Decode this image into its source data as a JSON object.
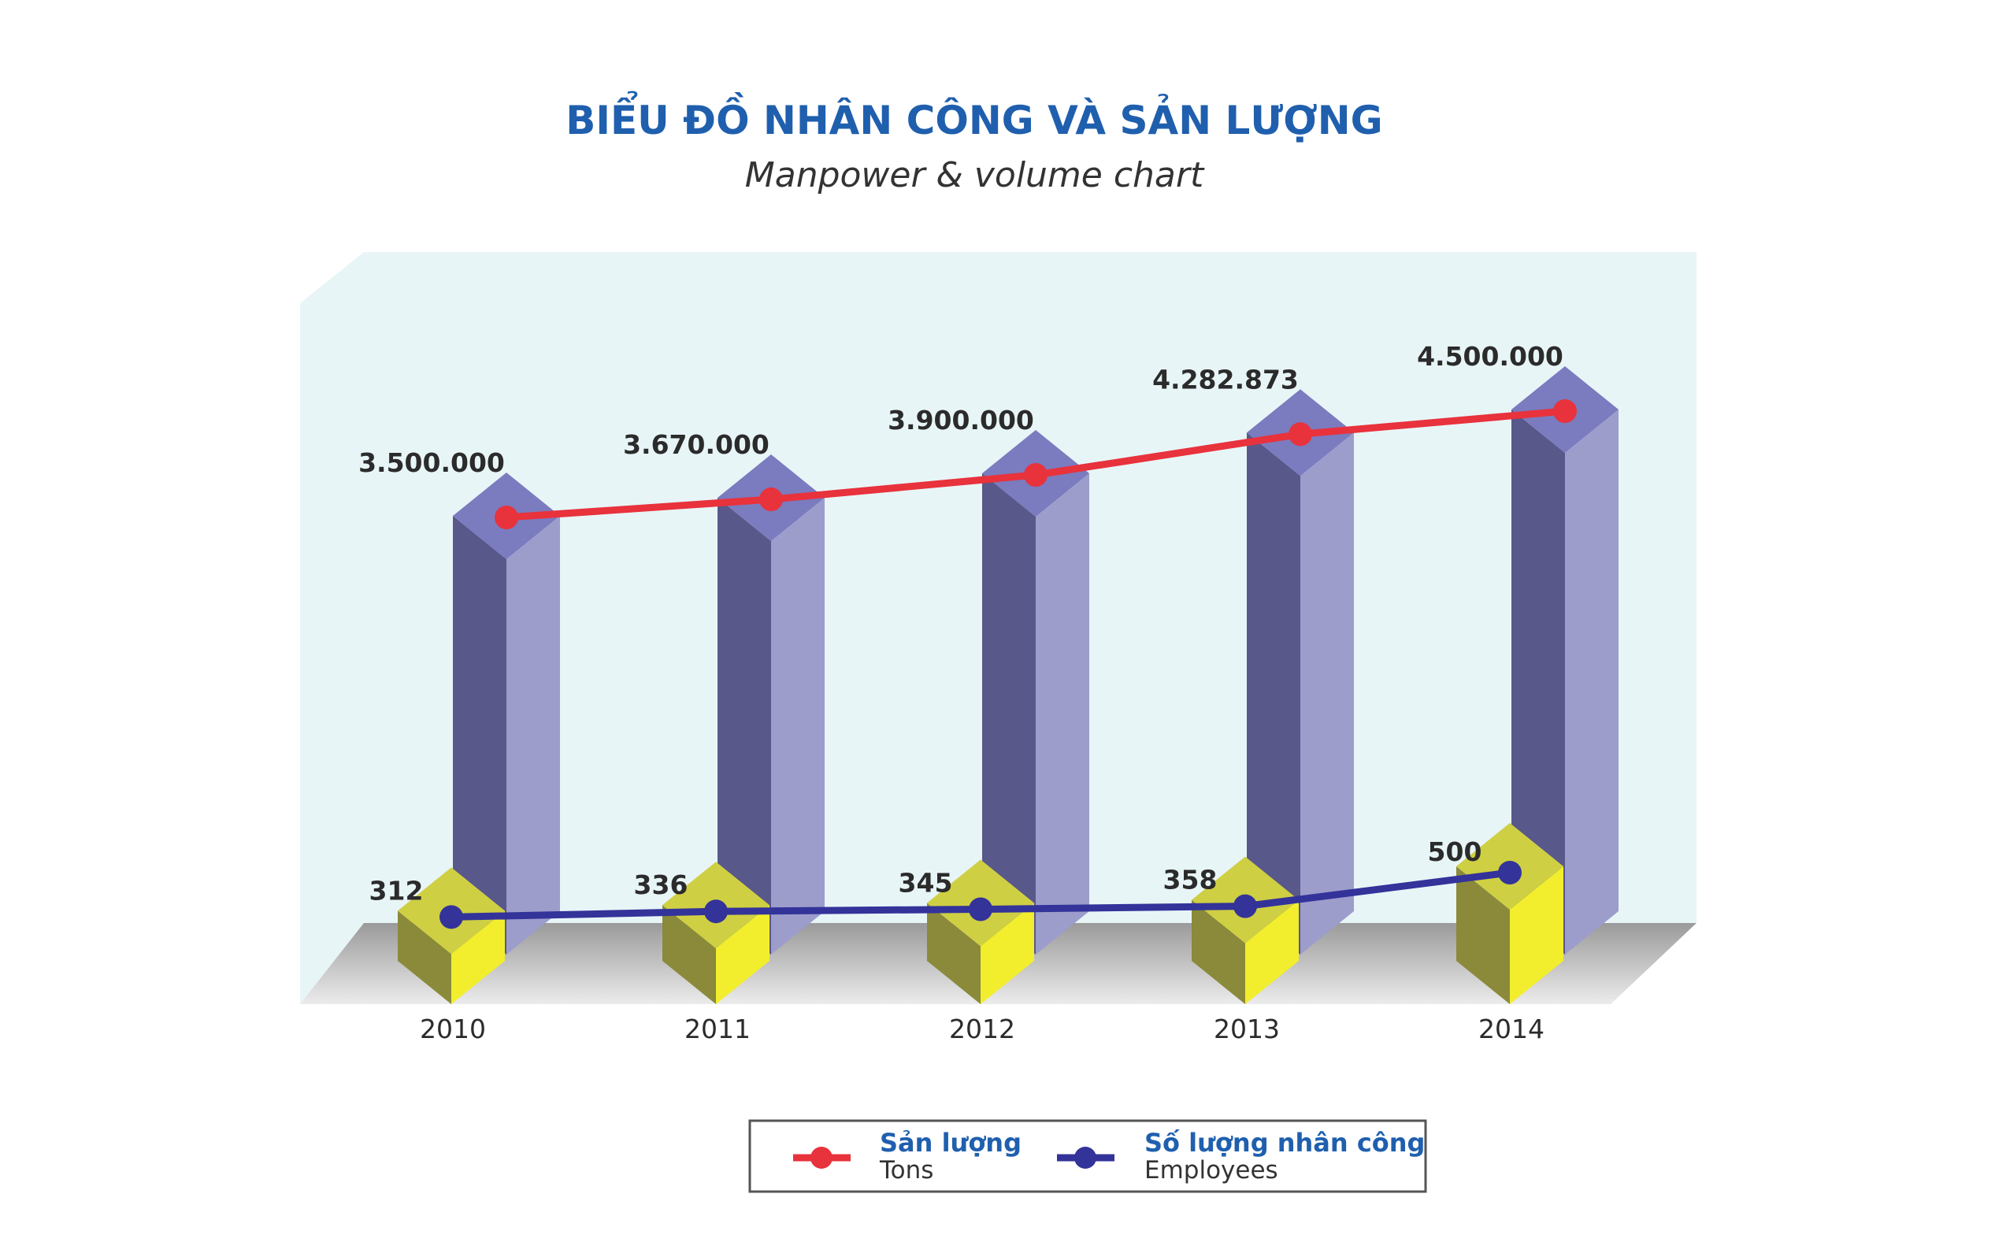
{
  "chart_data": {
    "type": "bar",
    "title": "BIỂU ĐỒ NHÂN CÔNG VÀ SẢN LƯỢNG",
    "subtitle": "Manpower & volume chart",
    "categories": [
      "2010",
      "2011",
      "2012",
      "2013",
      "2014"
    ],
    "series": [
      {
        "name": "Sản lượng",
        "name_en": "Tons",
        "values": [
          3500000,
          3670000,
          3900000,
          4282873,
          4500000
        ],
        "labels": [
          "3.500.000",
          "3.670.000",
          "3.900.000",
          "4.282.873",
          "4.500.000"
        ],
        "color": "#e8323c",
        "bar_color": "#7b7bbf"
      },
      {
        "name": "Số lượng nhân công",
        "name_en": "Employees",
        "values": [
          312,
          336,
          345,
          358,
          500
        ],
        "labels": [
          "312",
          "336",
          "345",
          "358",
          "500"
        ],
        "color": "#33339a",
        "bar_color": "#d9d83a"
      }
    ],
    "ylim_tons": [
      0,
      4500000
    ],
    "ylim_employees": [
      0,
      500
    ],
    "grid": false,
    "legend_position": "bottom-center"
  }
}
